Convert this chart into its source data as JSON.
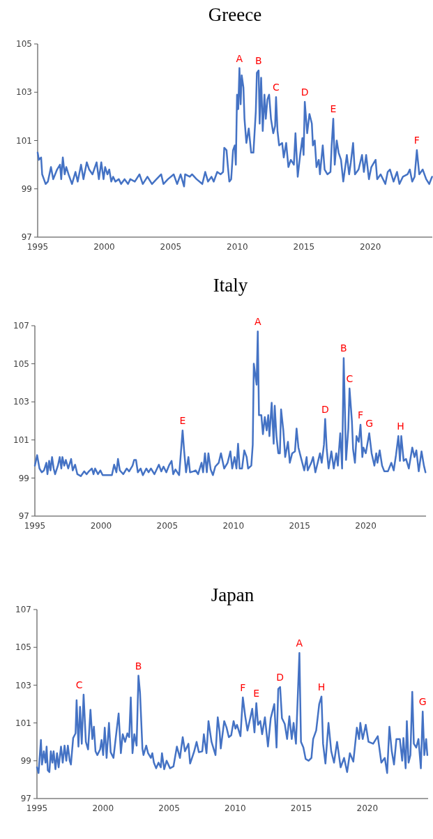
{
  "chart_data": [
    {
      "type": "line",
      "title": "Greece",
      "xlim": [
        1995,
        2024.65
      ],
      "xticks": [
        1995,
        2000,
        2005,
        2010,
        2015,
        2020
      ],
      "ylim": [
        97,
        105
      ],
      "yticks": [
        97,
        99,
        101,
        103,
        105
      ],
      "series": [
        {
          "color": "#4472c4",
          "x": [
            1995.0,
            1995.09,
            1995.26,
            1995.34,
            1995.6,
            1995.77,
            1996.0,
            1996.17,
            1996.46,
            1996.68,
            1996.77,
            1996.89,
            1997.03,
            1997.15,
            1997.32,
            1997.58,
            1997.84,
            1998.01,
            1998.26,
            1998.44,
            1998.69,
            1998.87,
            1999.12,
            1999.43,
            1999.6,
            1999.78,
            1999.95,
            2000.07,
            2000.24,
            2000.38,
            2000.53,
            2000.67,
            2000.84,
            2001.1,
            2001.27,
            2001.53,
            2001.79,
            2001.96,
            2002.3,
            2002.65,
            2002.9,
            2003.25,
            2003.59,
            2003.93,
            2004.28,
            2004.45,
            2004.79,
            2005.22,
            2005.48,
            2005.74,
            2006.0,
            2006.08,
            2006.43,
            2006.6,
            2006.94,
            2007.37,
            2007.59,
            2007.8,
            2008.06,
            2008.23,
            2008.49,
            2008.75,
            2008.93,
            2009.02,
            2009.19,
            2009.28,
            2009.4,
            2009.54,
            2009.68,
            2009.81,
            2009.89,
            2009.98,
            2010.07,
            2010.16,
            2010.25,
            2010.33,
            2010.46,
            2010.54,
            2010.68,
            2010.86,
            2011.04,
            2011.21,
            2011.39,
            2011.47,
            2011.6,
            2011.68,
            2011.79,
            2011.91,
            2012.04,
            2012.14,
            2012.26,
            2012.39,
            2012.53,
            2012.7,
            2012.84,
            2012.91,
            2013.02,
            2013.14,
            2013.37,
            2013.49,
            2013.67,
            2013.84,
            2014.02,
            2014.25,
            2014.37,
            2014.54,
            2014.72,
            2014.89,
            2014.98,
            2015.07,
            2015.25,
            2015.42,
            2015.6,
            2015.68,
            2015.82,
            2015.95,
            2016.12,
            2016.21,
            2016.42,
            2016.56,
            2016.77,
            2017.0,
            2017.09,
            2017.21,
            2017.32,
            2017.47,
            2017.61,
            2017.79,
            2017.96,
            2018.23,
            2018.4,
            2018.53,
            2018.7,
            2018.84,
            2019.11,
            2019.37,
            2019.51,
            2019.68,
            2019.89,
            2020.07,
            2020.39,
            2020.51,
            2020.77,
            2021.12,
            2021.3,
            2021.47,
            2021.74,
            2022.0,
            2022.18,
            2022.44,
            2022.79,
            2022.96,
            2023.14,
            2023.32,
            2023.49,
            2023.67,
            2023.93,
            2024.19,
            2024.42,
            2024.63
          ],
          "values": [
            100.5,
            100.2,
            100.3,
            99.6,
            99.2,
            99.3,
            99.9,
            99.4,
            99.8,
            100.0,
            99.4,
            100.3,
            99.6,
            99.9,
            99.6,
            99.2,
            99.7,
            99.3,
            100.0,
            99.4,
            100.1,
            99.8,
            99.6,
            100.1,
            99.4,
            100.1,
            99.4,
            99.9,
            99.6,
            99.8,
            99.3,
            99.5,
            99.3,
            99.4,
            99.2,
            99.4,
            99.2,
            99.4,
            99.3,
            99.6,
            99.2,
            99.5,
            99.2,
            99.4,
            99.6,
            99.2,
            99.4,
            99.6,
            99.2,
            99.6,
            99.1,
            99.6,
            99.5,
            99.6,
            99.4,
            99.2,
            99.7,
            99.3,
            99.5,
            99.3,
            99.7,
            99.6,
            99.7,
            100.7,
            100.6,
            100.0,
            99.3,
            99.4,
            100.6,
            100.8,
            100.0,
            102.9,
            102.3,
            104.0,
            102.5,
            103.7,
            103.2,
            101.9,
            100.9,
            101.5,
            100.5,
            100.5,
            102.2,
            103.8,
            103.9,
            101.7,
            103.6,
            101.4,
            102.9,
            101.9,
            102.7,
            102.9,
            101.9,
            101.3,
            101.6,
            102.8,
            101.4,
            100.8,
            100.9,
            100.3,
            100.9,
            99.9,
            100.2,
            100.0,
            101.3,
            99.5,
            100.4,
            101.1,
            100.4,
            102.6,
            101.3,
            102.1,
            101.7,
            100.8,
            101.0,
            99.9,
            100.2,
            99.6,
            100.8,
            99.8,
            99.6,
            99.7,
            100.8,
            101.9,
            100.0,
            101.0,
            100.5,
            100.2,
            99.3,
            100.4,
            99.6,
            100.1,
            100.9,
            99.6,
            99.8,
            100.4,
            99.7,
            100.4,
            99.4,
            99.9,
            100.2,
            99.4,
            99.6,
            99.2,
            99.7,
            99.8,
            99.3,
            99.7,
            99.2,
            99.5,
            99.6,
            99.8,
            99.3,
            99.5,
            100.6,
            99.6,
            99.8,
            99.4,
            99.2,
            99.5
          ]
        }
      ],
      "annotations": [
        {
          "text": "A",
          "x": 2010.16,
          "y": 104.0
        },
        {
          "text": "B",
          "x": 2011.6,
          "y": 103.9
        },
        {
          "text": "C",
          "x": 2012.91,
          "y": 102.8
        },
        {
          "text": "D",
          "x": 2015.07,
          "y": 102.6
        },
        {
          "text": "E",
          "x": 2017.21,
          "y": 101.9
        },
        {
          "text": "F",
          "x": 2023.49,
          "y": 100.6
        }
      ]
    },
    {
      "type": "line",
      "title": "Italy",
      "xlim": [
        1995,
        2024.55
      ],
      "xticks": [
        1995,
        2000,
        2005,
        2010,
        2015,
        2020
      ],
      "ylim": [
        97,
        107
      ],
      "yticks": [
        97,
        99,
        101,
        103,
        105,
        107
      ],
      "series": [
        {
          "color": "#4472c4",
          "x": [
            1995.0,
            1995.17,
            1995.35,
            1995.52,
            1995.69,
            1995.87,
            1995.95,
            1996.08,
            1996.18,
            1996.3,
            1996.42,
            1996.53,
            1996.74,
            1996.88,
            1997.0,
            1997.08,
            1997.22,
            1997.34,
            1997.52,
            1997.74,
            1997.86,
            1998.04,
            1998.21,
            1998.47,
            1998.73,
            1998.91,
            1999.08,
            1999.31,
            1999.43,
            1999.55,
            1999.77,
            1999.95,
            2000.12,
            2000.47,
            2000.82,
            2000.99,
            2001.16,
            2001.28,
            2001.42,
            2001.68,
            2001.94,
            2002.12,
            2002.38,
            2002.5,
            2002.64,
            2002.78,
            2002.99,
            2003.16,
            2003.42,
            2003.59,
            2003.77,
            2004.03,
            2004.37,
            2004.55,
            2004.72,
            2004.93,
            2005.16,
            2005.33,
            2005.45,
            2005.62,
            2005.9,
            2006.16,
            2006.28,
            2006.42,
            2006.6,
            2006.72,
            2006.98,
            2007.15,
            2007.33,
            2007.59,
            2007.71,
            2007.85,
            2007.99,
            2008.11,
            2008.28,
            2008.45,
            2008.63,
            2008.89,
            2009.06,
            2009.3,
            2009.56,
            2009.77,
            2009.91,
            2010.09,
            2010.23,
            2010.35,
            2010.47,
            2010.65,
            2010.82,
            2011.0,
            2011.11,
            2011.35,
            2011.46,
            2011.54,
            2011.75,
            2011.84,
            2011.93,
            2012.11,
            2012.23,
            2012.37,
            2012.51,
            2012.63,
            2012.72,
            2012.89,
            2013.04,
            2013.12,
            2013.25,
            2013.39,
            2013.51,
            2013.6,
            2013.77,
            2013.91,
            2014.12,
            2014.26,
            2014.44,
            2014.65,
            2014.77,
            2014.91,
            2015.09,
            2015.35,
            2015.53,
            2015.61,
            2015.88,
            2016.02,
            2016.19,
            2016.4,
            2016.54,
            2016.67,
            2016.84,
            2016.93,
            2017.05,
            2017.19,
            2017.4,
            2017.58,
            2017.77,
            2017.89,
            2018.07,
            2018.21,
            2018.33,
            2018.51,
            2018.68,
            2018.77,
            2018.95,
            2019.04,
            2019.18,
            2019.3,
            2019.47,
            2019.6,
            2019.74,
            2019.82,
            2020.0,
            2020.26,
            2020.44,
            2020.65,
            2020.79,
            2020.88,
            2021.05,
            2021.23,
            2021.4,
            2021.67,
            2021.93,
            2022.11,
            2022.28,
            2022.46,
            2022.58,
            2022.68,
            2022.86,
            2023.04,
            2023.25,
            2023.51,
            2023.68,
            2023.82,
            2024.0,
            2024.21,
            2024.39,
            2024.51
          ],
          "values": [
            99.65,
            100.2,
            99.5,
            99.3,
            99.4,
            99.8,
            99.2,
            99.9,
            99.4,
            100.1,
            99.5,
            99.2,
            99.65,
            100.1,
            99.5,
            100.1,
            99.65,
            99.95,
            99.5,
            100.0,
            99.4,
            99.7,
            99.2,
            99.1,
            99.35,
            99.2,
            99.35,
            99.5,
            99.2,
            99.5,
            99.2,
            99.4,
            99.15,
            99.15,
            99.15,
            99.7,
            99.3,
            100.0,
            99.4,
            99.2,
            99.5,
            99.35,
            99.65,
            99.95,
            99.95,
            99.3,
            99.5,
            99.15,
            99.5,
            99.3,
            99.5,
            99.2,
            99.7,
            99.35,
            99.6,
            99.3,
            99.7,
            99.9,
            99.2,
            99.45,
            99.15,
            101.5,
            100.4,
            99.3,
            100.1,
            99.3,
            99.35,
            99.4,
            99.2,
            99.8,
            99.3,
            100.3,
            99.3,
            100.3,
            99.45,
            99.15,
            99.6,
            99.8,
            100.3,
            99.5,
            99.8,
            100.4,
            99.5,
            100.1,
            99.5,
            100.8,
            99.5,
            99.5,
            100.45,
            100.1,
            99.5,
            99.65,
            100.75,
            105.0,
            103.9,
            106.7,
            102.3,
            102.3,
            101.3,
            102.2,
            101.5,
            102.3,
            101.2,
            102.95,
            100.8,
            102.8,
            101.2,
            100.3,
            100.3,
            102.6,
            101.5,
            100.1,
            100.9,
            99.8,
            100.3,
            100.4,
            101.6,
            100.6,
            100.1,
            99.4,
            100.1,
            99.4,
            99.8,
            100.1,
            99.3,
            99.9,
            100.3,
            99.8,
            100.75,
            102.1,
            100.5,
            99.5,
            100.4,
            99.5,
            100.3,
            99.65,
            101.35,
            99.5,
            105.3,
            99.95,
            101.6,
            103.7,
            102.0,
            100.5,
            99.8,
            101.2,
            100.9,
            101.8,
            100.1,
            100.6,
            100.3,
            101.35,
            100.3,
            99.65,
            100.3,
            99.8,
            100.45,
            99.65,
            99.35,
            99.35,
            99.8,
            99.4,
            100.2,
            101.2,
            99.9,
            101.2,
            99.9,
            100.0,
            99.5,
            100.6,
            100.1,
            100.45,
            99.35,
            100.4,
            99.65,
            99.3
          ]
        }
      ],
      "annotations": [
        {
          "text": "A",
          "x": 2011.84,
          "y": 106.7
        },
        {
          "text": "B",
          "x": 2018.33,
          "y": 105.3
        },
        {
          "text": "C",
          "x": 2018.77,
          "y": 103.7
        },
        {
          "text": "D",
          "x": 2016.93,
          "y": 102.1
        },
        {
          "text": "E",
          "x": 2006.16,
          "y": 101.5
        },
        {
          "text": "F",
          "x": 2019.6,
          "y": 101.8
        },
        {
          "text": "G",
          "x": 2020.26,
          "y": 101.35
        },
        {
          "text": "H",
          "x": 2022.63,
          "y": 101.2
        }
      ]
    },
    {
      "type": "line",
      "title": "Japan",
      "xlim": [
        1995,
        2024.6
      ],
      "xticks": [
        1995,
        2000,
        2005,
        2010,
        2015,
        2020
      ],
      "ylim": [
        97,
        107
      ],
      "yticks": [
        97,
        99,
        101,
        103,
        105,
        107
      ],
      "series": [
        {
          "color": "#4472c4",
          "x": [
            1995.0,
            1995.12,
            1995.3,
            1995.38,
            1995.52,
            1995.65,
            1995.73,
            1995.82,
            1995.94,
            1996.05,
            1996.17,
            1996.26,
            1996.4,
            1996.52,
            1996.64,
            1996.82,
            1996.95,
            1997.09,
            1997.22,
            1997.34,
            1997.48,
            1997.57,
            1997.74,
            1997.92,
            1998.0,
            1998.14,
            1998.26,
            1998.39,
            1998.53,
            1998.7,
            1998.87,
            1999.05,
            1999.19,
            1999.31,
            1999.43,
            1999.57,
            1999.78,
            1999.89,
            2000.01,
            2000.13,
            2000.27,
            2000.45,
            2000.58,
            2000.79,
            2000.97,
            2001.18,
            2001.35,
            2001.49,
            2001.67,
            2001.84,
            2001.98,
            2002.1,
            2002.23,
            2002.37,
            2002.54,
            2002.68,
            2002.8,
            2002.98,
            2003.06,
            2003.27,
            2003.41,
            2003.62,
            2003.73,
            2003.85,
            2004.02,
            2004.2,
            2004.37,
            2004.46,
            2004.63,
            2004.81,
            2005.07,
            2005.33,
            2005.59,
            2005.82,
            2006.03,
            2006.2,
            2006.46,
            2006.59,
            2006.9,
            2007.08,
            2007.25,
            2007.51,
            2007.63,
            2007.83,
            2007.98,
            2008.21,
            2008.51,
            2008.68,
            2008.82,
            2008.91,
            2009.17,
            2009.35,
            2009.52,
            2009.7,
            2009.88,
            2010.02,
            2010.14,
            2010.4,
            2010.58,
            2010.76,
            2010.93,
            2011.14,
            2011.29,
            2011.46,
            2011.6,
            2011.73,
            2011.9,
            2012.04,
            2012.25,
            2012.48,
            2012.69,
            2012.96,
            2013.13,
            2013.26,
            2013.4,
            2013.54,
            2013.75,
            2013.93,
            2014.1,
            2014.28,
            2014.42,
            2014.6,
            2014.72,
            2014.86,
            2014.98,
            2015.16,
            2015.33,
            2015.55,
            2015.77,
            2015.9,
            2016.13,
            2016.36,
            2016.53,
            2016.65,
            2016.83,
            2017.06,
            2017.27,
            2017.48,
            2017.71,
            2017.98,
            2018.24,
            2018.47,
            2018.68,
            2018.94,
            2019.21,
            2019.38,
            2019.47,
            2019.65,
            2019.88,
            2020.09,
            2020.44,
            2020.79,
            2021.06,
            2021.32,
            2021.5,
            2021.67,
            2021.85,
            2022.02,
            2022.2,
            2022.46,
            2022.64,
            2022.73,
            2022.9,
            2022.99,
            2023.12,
            2023.26,
            2023.4,
            2023.52,
            2023.7,
            2023.87,
            2024.05,
            2024.19,
            2024.31,
            2024.45,
            2024.54
          ],
          "values": [
            98.65,
            98.35,
            100.1,
            98.8,
            99.5,
            98.9,
            99.75,
            98.5,
            98.4,
            99.5,
            98.9,
            99.5,
            98.55,
            99.4,
            98.65,
            99.75,
            98.9,
            99.8,
            99.0,
            99.8,
            99.0,
            98.8,
            100.2,
            100.45,
            102.2,
            99.75,
            101.85,
            99.9,
            102.5,
            100.0,
            99.6,
            101.7,
            100.15,
            100.8,
            99.5,
            99.3,
            99.6,
            100.1,
            99.3,
            100.75,
            99.15,
            101.0,
            99.45,
            99.15,
            100.25,
            101.5,
            99.4,
            100.4,
            100.0,
            100.45,
            100.25,
            102.35,
            99.4,
            100.4,
            99.8,
            103.5,
            102.6,
            99.65,
            99.3,
            99.8,
            99.4,
            99.15,
            99.4,
            98.9,
            98.6,
            98.9,
            98.65,
            99.4,
            98.55,
            99.0,
            98.6,
            98.7,
            99.75,
            99.15,
            100.25,
            99.5,
            99.9,
            98.85,
            99.5,
            100.0,
            99.45,
            99.5,
            100.4,
            99.4,
            101.1,
            100.0,
            99.3,
            101.3,
            100.55,
            99.65,
            101.1,
            100.75,
            100.25,
            100.35,
            101.1,
            100.7,
            100.9,
            100.3,
            102.35,
            101.35,
            100.6,
            101.25,
            101.75,
            100.5,
            102.05,
            100.9,
            101.1,
            100.4,
            101.3,
            99.75,
            101.25,
            102.0,
            99.7,
            102.8,
            102.9,
            101.25,
            100.95,
            100.15,
            101.35,
            100.15,
            101.0,
            99.9,
            102.1,
            104.7,
            100.0,
            99.7,
            99.1,
            99.0,
            99.15,
            100.15,
            100.6,
            102.0,
            102.4,
            99.9,
            98.85,
            101.0,
            99.5,
            98.9,
            100.0,
            98.65,
            99.15,
            98.4,
            99.4,
            98.95,
            100.75,
            100.15,
            101.0,
            100.15,
            100.9,
            100.0,
            99.9,
            100.3,
            98.9,
            99.15,
            98.35,
            100.8,
            99.5,
            98.8,
            100.15,
            100.15,
            99.0,
            100.2,
            98.6,
            101.1,
            98.9,
            99.3,
            102.65,
            99.9,
            99.7,
            100.15,
            98.6,
            101.6,
            99.3,
            100.15,
            99.3
          ]
        }
      ],
      "annotations": [
        {
          "text": "C",
          "x": 1998.2,
          "y": 102.5
        },
        {
          "text": "B",
          "x": 2002.68,
          "y": 103.5
        },
        {
          "text": "F",
          "x": 2010.58,
          "y": 102.35
        },
        {
          "text": "E",
          "x": 2011.6,
          "y": 102.05
        },
        {
          "text": "D",
          "x": 2013.4,
          "y": 102.9
        },
        {
          "text": "A",
          "x": 2014.86,
          "y": 104.7
        },
        {
          "text": "H",
          "x": 2016.53,
          "y": 102.4
        },
        {
          "text": "G",
          "x": 2024.19,
          "y": 101.6
        }
      ]
    }
  ]
}
